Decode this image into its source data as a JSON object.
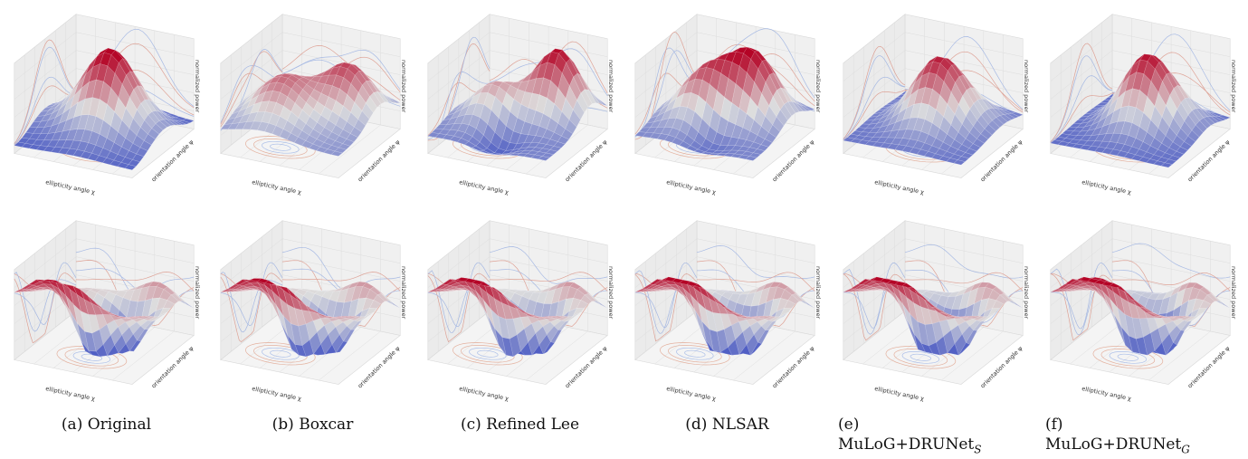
{
  "figure": {
    "axis_labels": {
      "x": "ellipticity angle χ",
      "y": "orientation angle ψ",
      "z": "normalized power"
    },
    "panels": [
      {
        "caption": "(a) Original"
      },
      {
        "caption": "(b) Boxcar"
      },
      {
        "caption": "(c) Refined Lee"
      },
      {
        "caption": "(d) NLSAR"
      },
      {
        "caption_prefix": "(e)",
        "caption_main": "MuLoG+DRUNet",
        "caption_sub": "S"
      },
      {
        "caption_prefix": "(f)",
        "caption_main": "MuLoG+DRUNet",
        "caption_sub": "G"
      }
    ],
    "colormap": {
      "low": "#3b4cc0",
      "mid": "#dddddd",
      "high": "#b40426"
    }
  }
}
